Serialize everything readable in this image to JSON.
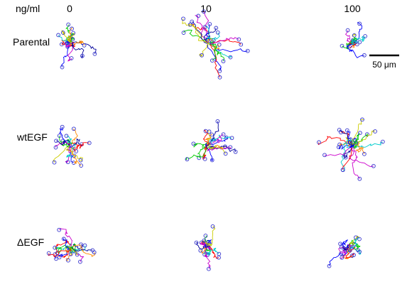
{
  "header": {
    "unit_label": "ng/ml",
    "doses": [
      "0",
      "10",
      "100"
    ]
  },
  "rows": [
    {
      "label": "Parental"
    },
    {
      "label": "wtEGF"
    },
    {
      "label": "ΔEGF"
    }
  ],
  "scalebar": {
    "label": "50 μm",
    "color": "#000000"
  },
  "track_colors": [
    "#ff0000",
    "#00cc00",
    "#0000ff",
    "#00cccc",
    "#cc00cc",
    "#cccc00",
    "#ff8800",
    "#000099"
  ],
  "endpoint_color": "#3333cc",
  "panels": [
    {
      "row": 0,
      "col": 0,
      "tracks": 16,
      "spread": 0.9,
      "seed": 11
    },
    {
      "row": 0,
      "col": 1,
      "tracks": 22,
      "spread": 1.7,
      "seed": 23
    },
    {
      "row": 0,
      "col": 2,
      "tracks": 12,
      "spread": 0.55,
      "seed": 37
    },
    {
      "row": 1,
      "col": 0,
      "tracks": 16,
      "spread": 1.1,
      "seed": 41
    },
    {
      "row": 1,
      "col": 1,
      "tracks": 18,
      "spread": 1.2,
      "seed": 53
    },
    {
      "row": 1,
      "col": 2,
      "tracks": 22,
      "spread": 1.6,
      "seed": 67
    },
    {
      "row": 2,
      "col": 0,
      "tracks": 18,
      "spread": 1.0,
      "seed": 71
    },
    {
      "row": 2,
      "col": 1,
      "tracks": 14,
      "spread": 0.75,
      "seed": 83
    },
    {
      "row": 2,
      "col": 2,
      "tracks": 14,
      "spread": 0.7,
      "seed": 97
    }
  ]
}
